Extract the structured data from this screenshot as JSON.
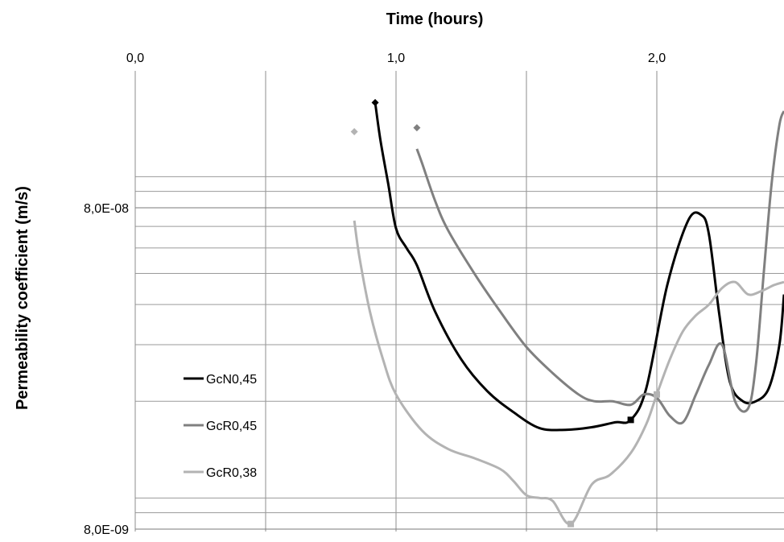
{
  "chart_data": {
    "type": "line",
    "xlabel": "Time (hours)",
    "ylabel": "Permeability coefficient (m/s)",
    "x_axis_position": "top",
    "xlim": [
      0.0,
      2.5
    ],
    "x_ticks": [
      "0,0",
      "1,0",
      "2,0"
    ],
    "x_tick_values": [
      0.0,
      1.0,
      2.0
    ],
    "x_grid_step": 0.5,
    "y_scale": "log",
    "ylim": [
      8e-09,
      1.8e-07
    ],
    "y_ticks": [
      "8,0E-09",
      "8,0E-08"
    ],
    "y_tick_values": [
      8e-09,
      8e-08
    ],
    "grid": true,
    "legend_position": "left",
    "series": [
      {
        "name": "GcN0,45",
        "color": "#000000",
        "marker": "diamond",
        "marker_at": 0,
        "end_marker": "square",
        "x": [
          0.92,
          0.94,
          0.97,
          1.0,
          1.04,
          1.08,
          1.15,
          1.25,
          1.35,
          1.45,
          1.55,
          1.65,
          1.75,
          1.84,
          1.9,
          1.96,
          2.04,
          2.12,
          2.17,
          2.2,
          2.24,
          2.28,
          2.33,
          2.38,
          2.43,
          2.47,
          2.5
        ],
        "y": [
          1.7e-07,
          1.3e-07,
          9.5e-08,
          6.9e-08,
          6e-08,
          5.3e-08,
          3.8e-08,
          2.7e-08,
          2.15e-08,
          1.85e-08,
          1.65e-08,
          1.63e-08,
          1.66e-08,
          1.72e-08,
          1.75e-08,
          2.2e-08,
          4.6e-08,
          7.3e-08,
          7.6e-08,
          6.6e-08,
          3.7e-08,
          2.3e-08,
          2e-08,
          2e-08,
          2.2e-08,
          3e-08,
          4.3e-08
        ]
      },
      {
        "name": "GcR0,45",
        "color": "#808080",
        "marker": "diamond",
        "marker_at": 0,
        "marker_offset_y": 1.42e-07,
        "x": [
          1.08,
          1.1,
          1.15,
          1.2,
          1.3,
          1.4,
          1.5,
          1.6,
          1.7,
          1.76,
          1.83,
          1.9,
          1.95,
          2.0,
          2.05,
          2.1,
          2.15,
          2.2,
          2.25,
          2.3,
          2.35,
          2.38,
          2.41,
          2.44,
          2.47,
          2.49
        ],
        "y": [
          1.22e-07,
          1.1e-07,
          8.4e-08,
          6.8e-08,
          5e-08,
          3.8e-08,
          2.95e-08,
          2.45e-08,
          2.1e-08,
          2e-08,
          2e-08,
          1.95e-08,
          2.1e-08,
          2.05e-08,
          1.8e-08,
          1.72e-08,
          2.1e-08,
          2.6e-08,
          3e-08,
          2e-08,
          1.9e-08,
          2.6e-08,
          5e-08,
          9.5e-08,
          1.45e-07,
          1.6e-07
        ]
      },
      {
        "name": "GcR0,38",
        "color": "#b3b3b3",
        "marker": "diamond",
        "marker_at": 0,
        "marker_offset_y": 1.38e-07,
        "end_marker": "square",
        "end_marker_index": 13,
        "x": [
          0.84,
          0.86,
          0.9,
          0.95,
          1.0,
          1.1,
          1.2,
          1.3,
          1.4,
          1.45,
          1.5,
          1.55,
          1.6,
          1.67,
          1.75,
          1.82,
          1.9,
          1.96,
          2.0,
          2.05,
          2.1,
          2.15,
          2.2,
          2.25,
          2.3,
          2.35,
          2.4,
          2.45,
          2.5
        ],
        "y": [
          7.3e-08,
          5.6e-08,
          3.8e-08,
          2.7e-08,
          2.1e-08,
          1.62e-08,
          1.42e-08,
          1.33e-08,
          1.23e-08,
          1.13e-08,
          1.02e-08,
          1e-08,
          9.8e-09,
          8.3e-09,
          1.1e-08,
          1.18e-08,
          1.38e-08,
          1.7e-08,
          2.1e-08,
          2.7e-08,
          3.3e-08,
          3.7e-08,
          4e-08,
          4.5e-08,
          4.7e-08,
          4.3e-08,
          4.4e-08,
          4.6e-08,
          4.7e-08
        ]
      }
    ]
  }
}
